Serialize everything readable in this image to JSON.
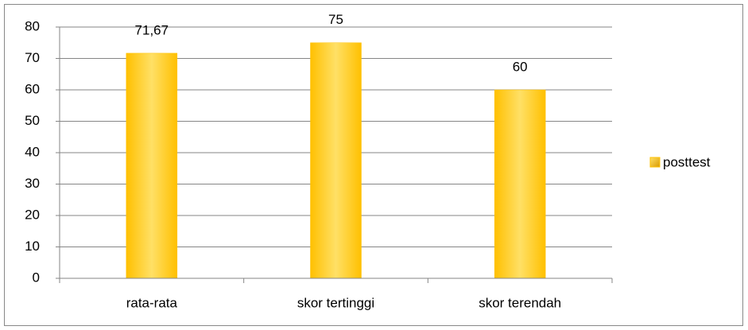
{
  "chart_data": {
    "type": "bar",
    "categories": [
      "rata-rata",
      "skor tertinggi",
      "skor terendah"
    ],
    "series": [
      {
        "name": "posttest",
        "color": "#ffc000",
        "values": [
          71.67,
          75,
          60
        ],
        "value_labels": [
          "71,67",
          "75",
          "60"
        ]
      }
    ],
    "ylim": [
      0,
      80
    ],
    "yticks": [
      0,
      10,
      20,
      30,
      40,
      50,
      60,
      70,
      80
    ],
    "grid": true,
    "legend": "right"
  }
}
